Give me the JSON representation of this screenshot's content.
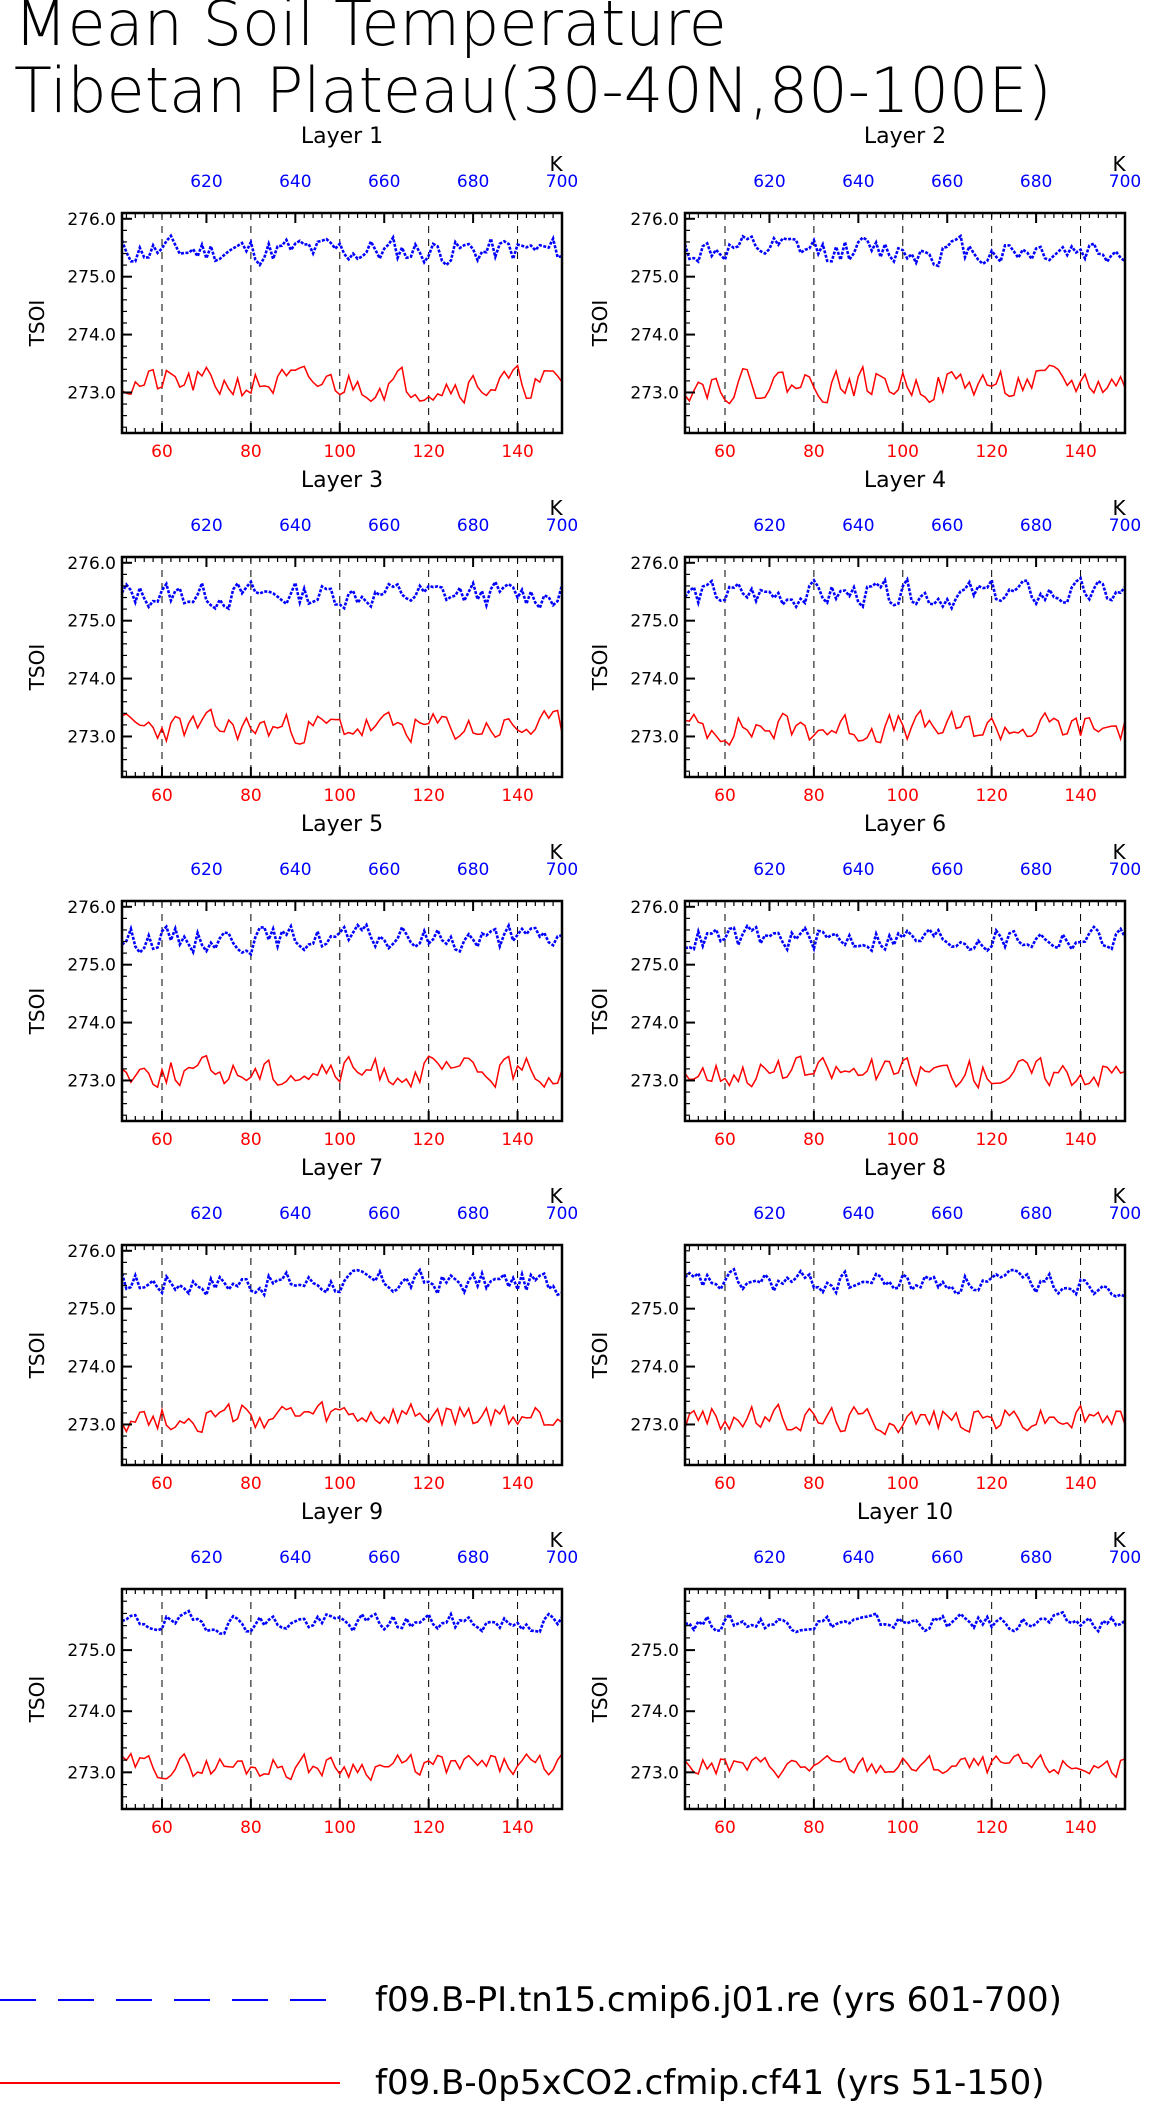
{
  "title": [
    "Mean Soil Temperature",
    "Tibetan Plateau(30-40N,80-100E)"
  ],
  "colors": {
    "control": "#0000ff",
    "experiment": "#ff0000",
    "axis": "#000000"
  },
  "legend": [
    {
      "label": "f09.B-PI.tn15.cmip6.j01.re (yrs 601-700)",
      "color": "#0000ff",
      "style": "dashed"
    },
    {
      "label": "f09.B-0p5xCO2.cfmip.cf41 (yrs 51-150)",
      "color": "#ff0000",
      "style": "solid"
    }
  ],
  "chart_data": [
    {
      "type": "line",
      "title": "Layer 1",
      "ylabel": "TSOI",
      "xlim": [
        51,
        150
      ],
      "x_top_lim": [
        601,
        700
      ],
      "ylim": [
        272.3,
        276.1
      ],
      "top_ticks": [
        620,
        640,
        660,
        680,
        700
      ],
      "top_unit": "K",
      "bottom_ticks": [
        60,
        80,
        100,
        120,
        140
      ],
      "y_ticks": [
        276.0,
        275.0,
        274.0,
        273.0
      ],
      "series": [
        {
          "name": "f09.B-PI.tn15.cmip6.j01.re (yrs 601-700)",
          "base": 275.45,
          "amp": 0.22,
          "seed": 11
        },
        {
          "name": "f09.B-0p5xCO2.cfmip.cf41 (yrs 51-150)",
          "base": 273.15,
          "amp": 0.25,
          "seed": 21
        }
      ]
    },
    {
      "type": "line",
      "title": "Layer 2",
      "ylabel": "TSOI",
      "xlim": [
        51,
        150
      ],
      "x_top_lim": [
        601,
        700
      ],
      "ylim": [
        272.3,
        276.1
      ],
      "top_ticks": [
        620,
        640,
        660,
        680,
        700
      ],
      "top_unit": "K",
      "bottom_ticks": [
        60,
        80,
        100,
        120,
        140
      ],
      "y_ticks": [
        276.0,
        275.0,
        274.0,
        273.0
      ],
      "series": [
        {
          "name": "f09.B-PI.tn15.cmip6.j01.re (yrs 601-700)",
          "base": 275.45,
          "amp": 0.22,
          "seed": 12
        },
        {
          "name": "f09.B-0p5xCO2.cfmip.cf41 (yrs 51-150)",
          "base": 273.15,
          "amp": 0.25,
          "seed": 22
        }
      ]
    },
    {
      "type": "line",
      "title": "Layer 3",
      "ylabel": "TSOI",
      "xlim": [
        51,
        150
      ],
      "x_top_lim": [
        601,
        700
      ],
      "ylim": [
        272.3,
        276.1
      ],
      "top_ticks": [
        620,
        640,
        660,
        680,
        700
      ],
      "top_unit": "K",
      "bottom_ticks": [
        60,
        80,
        100,
        120,
        140
      ],
      "y_ticks": [
        276.0,
        275.0,
        274.0,
        273.0
      ],
      "series": [
        {
          "name": "f09.B-PI.tn15.cmip6.j01.re (yrs 601-700)",
          "base": 275.45,
          "amp": 0.21,
          "seed": 13
        },
        {
          "name": "f09.B-0p5xCO2.cfmip.cf41 (yrs 51-150)",
          "base": 273.15,
          "amp": 0.24,
          "seed": 23
        }
      ]
    },
    {
      "type": "line",
      "title": "Layer 4",
      "ylabel": "TSOI",
      "xlim": [
        51,
        150
      ],
      "x_top_lim": [
        601,
        700
      ],
      "ylim": [
        272.3,
        276.1
      ],
      "top_ticks": [
        620,
        640,
        660,
        680,
        700
      ],
      "top_unit": "K",
      "bottom_ticks": [
        60,
        80,
        100,
        120,
        140
      ],
      "y_ticks": [
        276.0,
        275.0,
        274.0,
        273.0
      ],
      "series": [
        {
          "name": "f09.B-PI.tn15.cmip6.j01.re (yrs 601-700)",
          "base": 275.45,
          "amp": 0.21,
          "seed": 14
        },
        {
          "name": "f09.B-0p5xCO2.cfmip.cf41 (yrs 51-150)",
          "base": 273.15,
          "amp": 0.24,
          "seed": 24
        }
      ]
    },
    {
      "type": "line",
      "title": "Layer 5",
      "ylabel": "TSOI",
      "xlim": [
        51,
        150
      ],
      "x_top_lim": [
        601,
        700
      ],
      "ylim": [
        272.3,
        276.1
      ],
      "top_ticks": [
        620,
        640,
        660,
        680,
        700
      ],
      "top_unit": "K",
      "bottom_ticks": [
        60,
        80,
        100,
        120,
        140
      ],
      "y_ticks": [
        276.0,
        275.0,
        274.0,
        273.0
      ],
      "series": [
        {
          "name": "f09.B-PI.tn15.cmip6.j01.re (yrs 601-700)",
          "base": 275.45,
          "amp": 0.2,
          "seed": 15
        },
        {
          "name": "f09.B-0p5xCO2.cfmip.cf41 (yrs 51-150)",
          "base": 273.15,
          "amp": 0.23,
          "seed": 25
        }
      ]
    },
    {
      "type": "line",
      "title": "Layer 6",
      "ylabel": "TSOI",
      "xlim": [
        51,
        150
      ],
      "x_top_lim": [
        601,
        700
      ],
      "ylim": [
        272.3,
        276.1
      ],
      "top_ticks": [
        620,
        640,
        660,
        680,
        700
      ],
      "top_unit": "K",
      "bottom_ticks": [
        60,
        80,
        100,
        120,
        140
      ],
      "y_ticks": [
        276.0,
        275.0,
        274.0,
        273.0
      ],
      "series": [
        {
          "name": "f09.B-PI.tn15.cmip6.j01.re (yrs 601-700)",
          "base": 275.45,
          "amp": 0.2,
          "seed": 16
        },
        {
          "name": "f09.B-0p5xCO2.cfmip.cf41 (yrs 51-150)",
          "base": 273.15,
          "amp": 0.23,
          "seed": 26
        }
      ]
    },
    {
      "type": "line",
      "title": "Layer 7",
      "ylabel": "TSOI",
      "xlim": [
        51,
        150
      ],
      "x_top_lim": [
        601,
        700
      ],
      "ylim": [
        272.3,
        276.1
      ],
      "top_ticks": [
        620,
        640,
        660,
        680,
        700
      ],
      "top_unit": "K",
      "bottom_ticks": [
        60,
        80,
        100,
        120,
        140
      ],
      "y_ticks": [
        276.0,
        275.0,
        274.0,
        273.0
      ],
      "series": [
        {
          "name": "f09.B-PI.tn15.cmip6.j01.re (yrs 601-700)",
          "base": 275.45,
          "amp": 0.19,
          "seed": 17
        },
        {
          "name": "f09.B-0p5xCO2.cfmip.cf41 (yrs 51-150)",
          "base": 273.12,
          "amp": 0.22,
          "seed": 27
        }
      ]
    },
    {
      "type": "line",
      "title": "Layer 8",
      "ylabel": "TSOI",
      "xlim": [
        51,
        150
      ],
      "x_top_lim": [
        601,
        700
      ],
      "ylim": [
        272.3,
        276.1
      ],
      "top_ticks": [
        620,
        640,
        660,
        680,
        700
      ],
      "top_unit": "K",
      "bottom_ticks": [
        60,
        80,
        100,
        120,
        140
      ],
      "y_ticks": [
        275.0,
        274.0,
        273.0
      ],
      "series": [
        {
          "name": "f09.B-PI.tn15.cmip6.j01.re (yrs 601-700)",
          "base": 275.45,
          "amp": 0.18,
          "seed": 18
        },
        {
          "name": "f09.B-0p5xCO2.cfmip.cf41 (yrs 51-150)",
          "base": 273.1,
          "amp": 0.21,
          "seed": 28
        }
      ]
    },
    {
      "type": "line",
      "title": "Layer 9",
      "ylabel": "TSOI",
      "xlim": [
        51,
        150
      ],
      "x_top_lim": [
        601,
        700
      ],
      "ylim": [
        272.4,
        276.0
      ],
      "top_ticks": [
        620,
        640,
        660,
        680,
        700
      ],
      "top_unit": "K",
      "bottom_ticks": [
        60,
        80,
        100,
        120,
        140
      ],
      "y_ticks": [
        275.0,
        274.0,
        273.0
      ],
      "series": [
        {
          "name": "f09.B-PI.tn15.cmip6.j01.re (yrs 601-700)",
          "base": 275.45,
          "amp": 0.14,
          "seed": 19
        },
        {
          "name": "f09.B-0p5xCO2.cfmip.cf41 (yrs 51-150)",
          "base": 273.1,
          "amp": 0.18,
          "seed": 29
        }
      ]
    },
    {
      "type": "line",
      "title": "Layer 10",
      "ylabel": "TSOI",
      "xlim": [
        51,
        150
      ],
      "x_top_lim": [
        601,
        700
      ],
      "ylim": [
        272.4,
        276.0
      ],
      "top_ticks": [
        620,
        640,
        660,
        680,
        700
      ],
      "top_unit": "K",
      "bottom_ticks": [
        60,
        80,
        100,
        120,
        140
      ],
      "y_ticks": [
        275.0,
        274.0,
        273.0
      ],
      "series": [
        {
          "name": "f09.B-PI.tn15.cmip6.j01.re (yrs 601-700)",
          "base": 275.45,
          "amp": 0.12,
          "seed": 20
        },
        {
          "name": "f09.B-0p5xCO2.cfmip.cf41 (yrs 51-150)",
          "base": 273.1,
          "amp": 0.16,
          "seed": 30
        }
      ]
    }
  ]
}
